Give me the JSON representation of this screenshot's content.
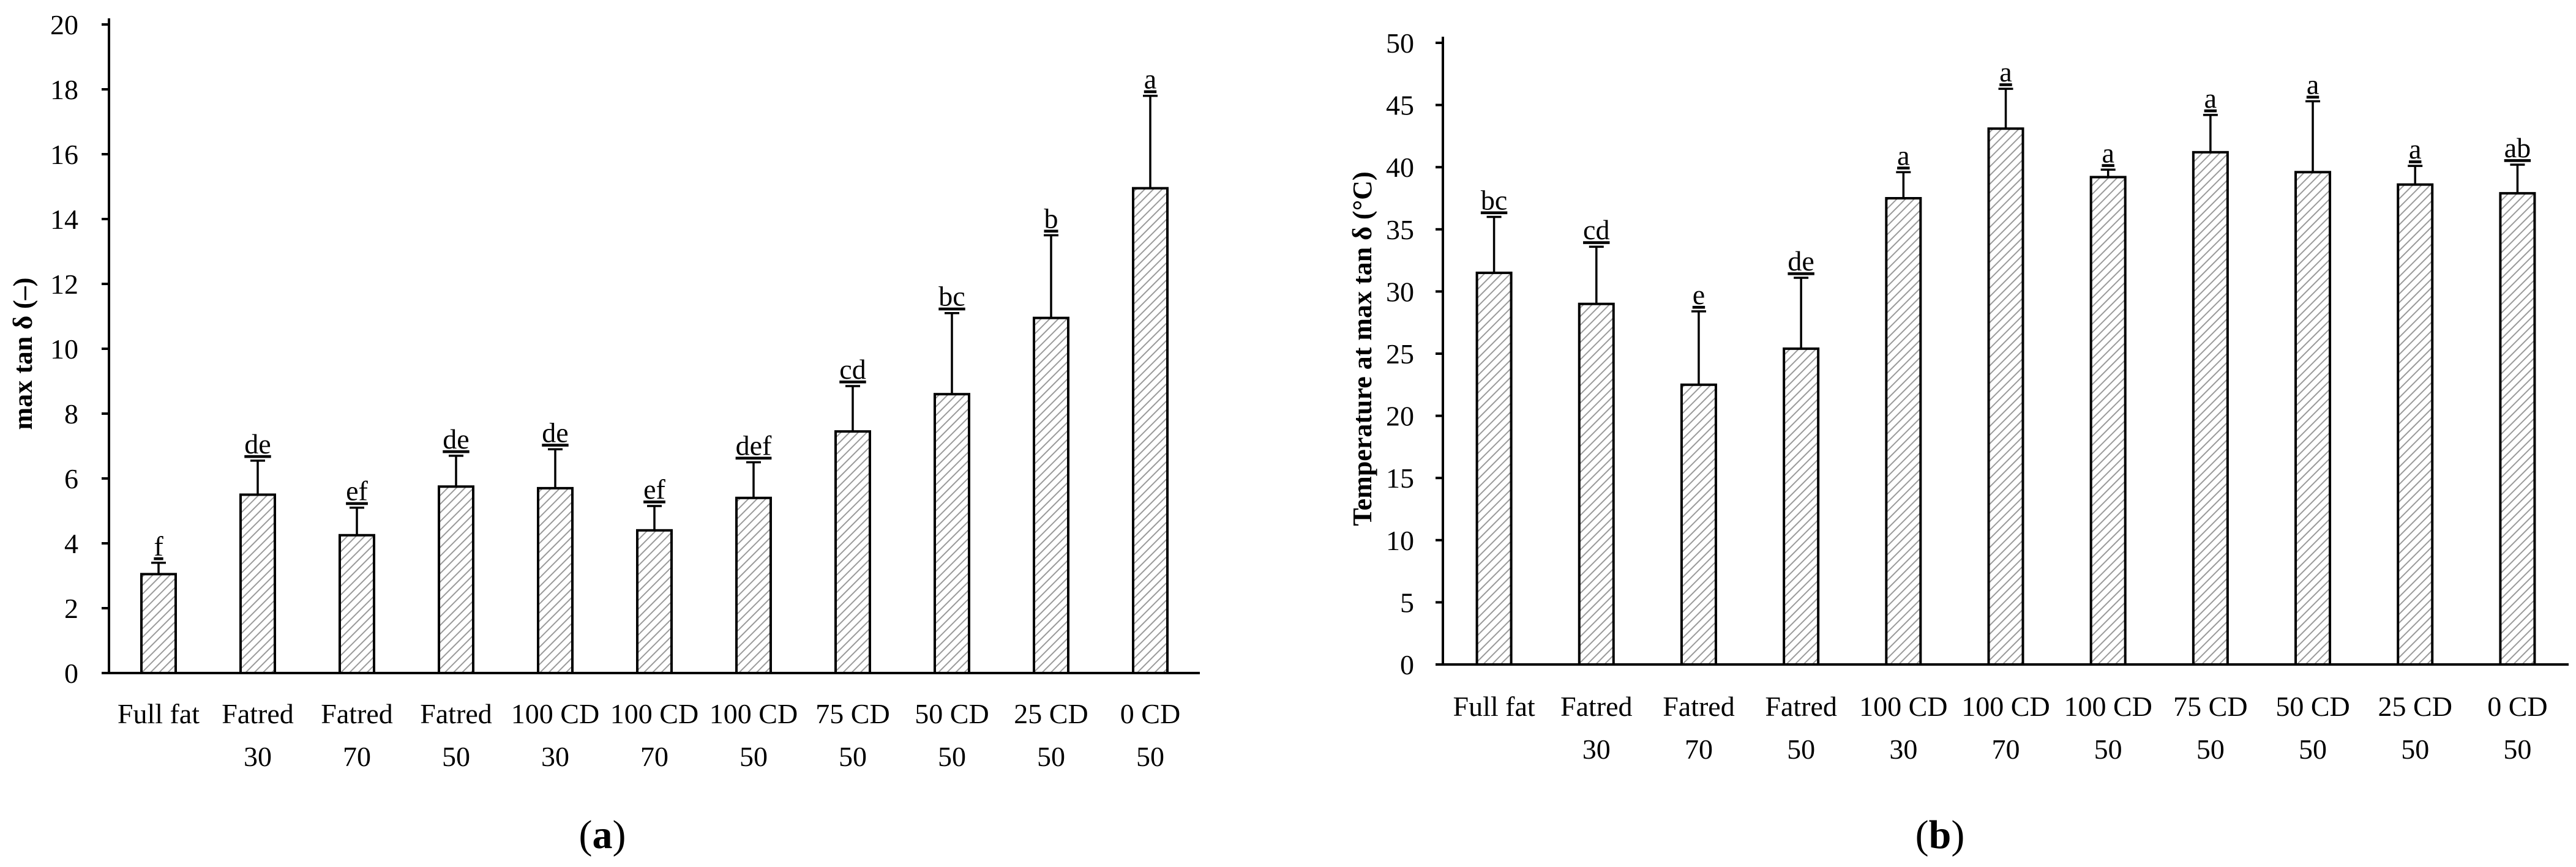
{
  "chart_data": [
    {
      "type": "bar",
      "panel": "a",
      "panel_label": {
        "open": "(",
        "letter": "a",
        "close": ")"
      },
      "ylabel": "max tan δ (–)",
      "xlabel": "",
      "ylim": [
        0,
        20
      ],
      "yticks": [
        0,
        2,
        4,
        6,
        8,
        10,
        12,
        14,
        16,
        18,
        20
      ],
      "categories": [
        [
          "Full fat",
          ""
        ],
        [
          "Fatred",
          "30"
        ],
        [
          "Fatred",
          "70"
        ],
        [
          "Fatred",
          "50"
        ],
        [
          "100 CD",
          "30"
        ],
        [
          "100 CD",
          "70"
        ],
        [
          "100 CD",
          "50"
        ],
        [
          "75 CD",
          "50"
        ],
        [
          "50 CD",
          "50"
        ],
        [
          "25 CD",
          "50"
        ],
        [
          "0 CD",
          "50"
        ]
      ],
      "values": [
        3.05,
        5.5,
        4.25,
        5.75,
        5.7,
        4.4,
        5.4,
        7.45,
        8.6,
        10.95,
        14.95
      ],
      "errors": [
        0.35,
        1.05,
        0.85,
        0.95,
        1.2,
        0.75,
        1.1,
        1.4,
        2.5,
        2.55,
        2.85
      ],
      "significance": [
        "f",
        "de",
        "ef",
        "de",
        "de",
        "ef",
        "def",
        "cd",
        "bc",
        "b",
        "a"
      ],
      "grid": false
    },
    {
      "type": "bar",
      "panel": "b",
      "panel_label": {
        "open": "(",
        "letter": "b",
        "close": ")"
      },
      "ylabel": "Temperature at max tan δ (°C)",
      "xlabel": "",
      "ylim": [
        0,
        50
      ],
      "yticks": [
        0,
        5,
        10,
        15,
        20,
        25,
        30,
        35,
        40,
        45,
        50
      ],
      "categories": [
        [
          "Full fat",
          ""
        ],
        [
          "Fatred",
          "30"
        ],
        [
          "Fatred",
          "70"
        ],
        [
          "Fatred",
          "50"
        ],
        [
          "100 CD",
          "30"
        ],
        [
          "100 CD",
          "70"
        ],
        [
          "100 CD",
          "50"
        ],
        [
          "75 CD",
          "50"
        ],
        [
          "50 CD",
          "50"
        ],
        [
          "25 CD",
          "50"
        ],
        [
          "0 CD",
          "50"
        ]
      ],
      "values": [
        31.5,
        29.0,
        22.5,
        25.4,
        37.5,
        43.1,
        39.2,
        41.2,
        39.6,
        38.6,
        37.9
      ],
      "errors": [
        4.5,
        4.6,
        5.9,
        5.7,
        2.1,
        3.2,
        0.6,
        3.0,
        5.7,
        1.5,
        2.3
      ],
      "significance": [
        "bc",
        "cd",
        "e",
        "de",
        "a",
        "a",
        "a",
        "a",
        "a",
        "a",
        "ab"
      ],
      "grid": false
    }
  ]
}
